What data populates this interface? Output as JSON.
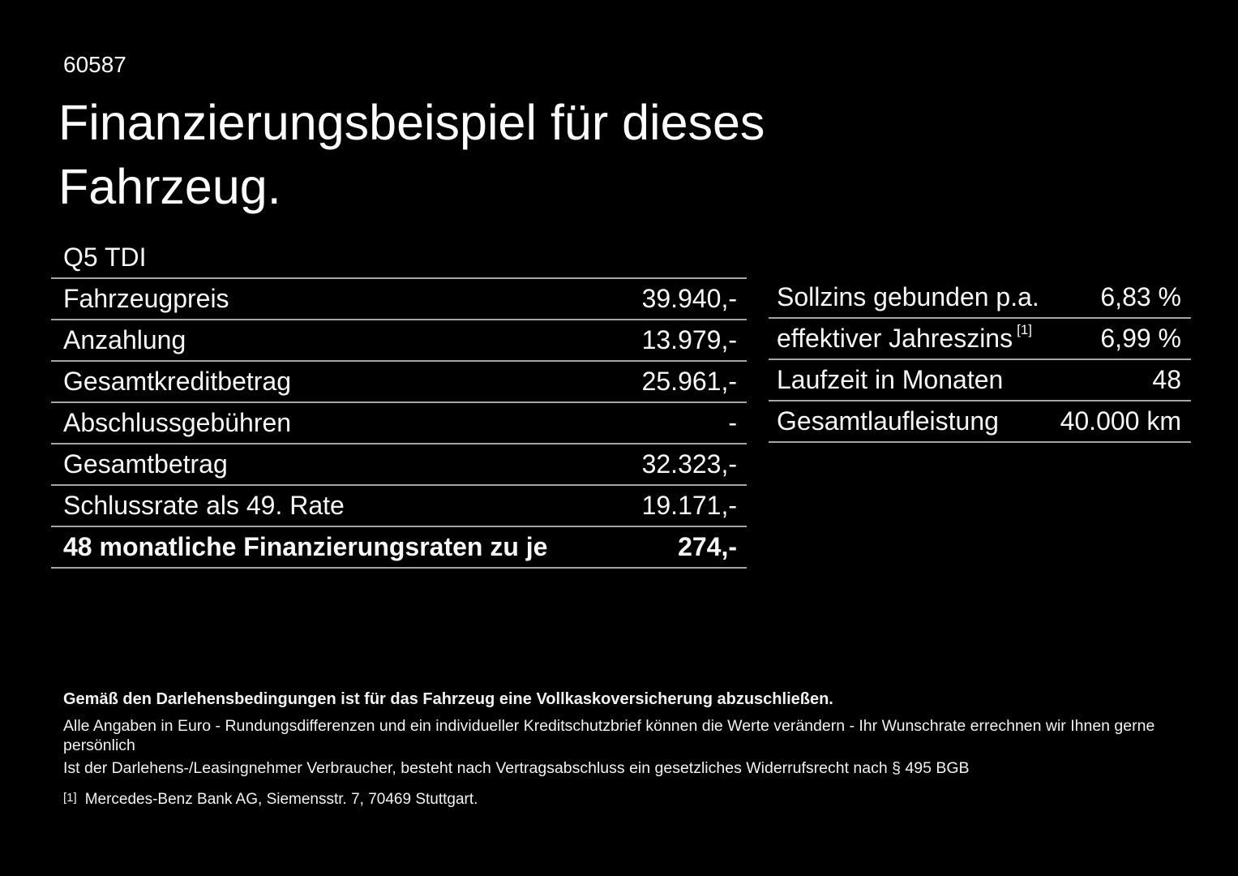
{
  "page": {
    "code": "60587",
    "title": {
      "line1": "Finanzierungsbeispiel für dieses",
      "line2": "Fahrzeug."
    }
  },
  "vehicle_model": "Q5 TDI",
  "finance_table": {
    "rows": [
      {
        "label": "Fahrzeugpreis",
        "value": "39.940,-"
      },
      {
        "label": "Anzahlung",
        "value": "13.979,-"
      },
      {
        "label": "Gesamtkreditbetrag",
        "value": "25.961,-"
      },
      {
        "label": "Abschlussgebühren",
        "value": "-"
      },
      {
        "label": "Gesamtbetrag",
        "value": "32.323,-"
      },
      {
        "label": "Schlussrate als 49. Rate",
        "value": "19.171,-"
      },
      {
        "label": "48 monatliche Finanzierungsraten zu je",
        "value": "274,-"
      }
    ]
  },
  "conditions_table": {
    "rows": [
      {
        "label": "Sollzins gebunden p.a.",
        "value": "6,83 %"
      },
      {
        "label": "effektiver Jahreszins",
        "footnote_marker": "[1]",
        "value": "6,99 %"
      },
      {
        "label": "Laufzeit in Monaten",
        "value": "48"
      },
      {
        "label": "Gesamtlaufleistung",
        "value": "40.000 km"
      }
    ]
  },
  "footer": {
    "line1": "Gemäß den Darlehensbedingungen ist für das Fahrzeug eine Vollkaskoversicherung abzuschließen.",
    "line2": "Alle Angaben in Euro - Rundungsdifferenzen und ein individueller Kreditschutzbrief können die Werte verändern - Ihr Wunschrate errechnen wir Ihnen gerne persönlich",
    "line3": "Ist der Darlehens-/Leasingnehmer Verbraucher, besteht nach Vertragsabschluss ein gesetzliches Widerrufsrecht nach § 495 BGB",
    "footnote": {
      "marker": "[1]",
      "text": "Mercedes-Benz Bank AG, Siemensstr. 7, 70469 Stuttgart."
    }
  },
  "colors": {
    "background": "#000000",
    "text": "#f7f7f7",
    "divider": "#a6a6a6"
  }
}
